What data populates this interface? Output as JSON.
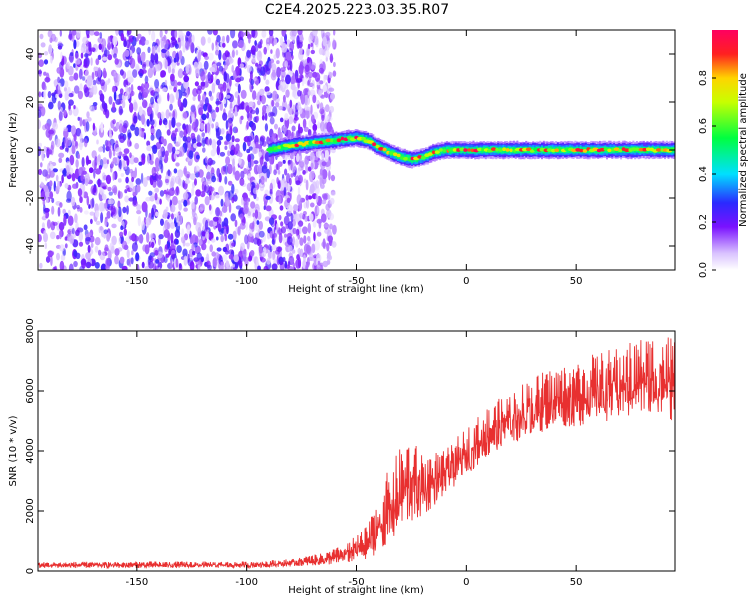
{
  "title": "C2E4.2025.223.03.35.R07",
  "chart_data": [
    {
      "type": "heatmap",
      "xlabel": "Height of straight line (km)",
      "ylabel": "Frequency (Hz)",
      "xlim": [
        -195,
        95
      ],
      "ylim": [
        -50,
        50
      ],
      "xticks": [
        "-150",
        "-100",
        "-50",
        "0",
        "50"
      ],
      "yticks": [
        "-40",
        "-20",
        "0",
        "20",
        "40"
      ],
      "colorbar": {
        "label": "Normalized spectral amplitude",
        "range": [
          0.0,
          1.0
        ],
        "ticks": [
          "0.0",
          "0.2",
          "0.4",
          "0.6",
          "0.8"
        ],
        "colormap": "white-purple-blue-cyan-green-yellow-red-magenta"
      },
      "ridge": {
        "x_start": -90,
        "x_end": 95,
        "frequency_profile": [
          {
            "x": -90,
            "y": 0
          },
          {
            "x": -80,
            "y": 2
          },
          {
            "x": -70,
            "y": 3
          },
          {
            "x": -60,
            "y": 4
          },
          {
            "x": -50,
            "y": 5
          },
          {
            "x": -45,
            "y": 4
          },
          {
            "x": -40,
            "y": 1
          },
          {
            "x": -35,
            "y": -1
          },
          {
            "x": -30,
            "y": -3
          },
          {
            "x": -25,
            "y": -4
          },
          {
            "x": -20,
            "y": -3
          },
          {
            "x": -15,
            "y": -1
          },
          {
            "x": -10,
            "y": 0
          },
          {
            "x": 0,
            "y": 0
          },
          {
            "x": 10,
            "y": 0
          },
          {
            "x": 20,
            "y": 0
          },
          {
            "x": 40,
            "y": 0
          },
          {
            "x": 60,
            "y": 0
          },
          {
            "x": 80,
            "y": 0
          },
          {
            "x": 95,
            "y": 0
          }
        ]
      }
    },
    {
      "type": "line",
      "xlabel": "Height of straight line (km)",
      "ylabel": "SNR (10 * v/v)",
      "xlim": [
        -195,
        95
      ],
      "ylim": [
        0,
        8000
      ],
      "xticks": [
        "-150",
        "-100",
        "-50",
        "0",
        "50"
      ],
      "yticks": [
        "0",
        "2000",
        "4000",
        "6000",
        "8000"
      ],
      "series": [
        {
          "color": "#e83030",
          "envelope": [
            {
              "x": -195,
              "low": 100,
              "high": 300
            },
            {
              "x": -150,
              "low": 100,
              "high": 320
            },
            {
              "x": -100,
              "low": 100,
              "high": 320
            },
            {
              "x": -80,
              "low": 150,
              "high": 400
            },
            {
              "x": -65,
              "low": 200,
              "high": 600
            },
            {
              "x": -55,
              "low": 250,
              "high": 900
            },
            {
              "x": -45,
              "low": 400,
              "high": 1500
            },
            {
              "x": -35,
              "low": 800,
              "high": 3500
            },
            {
              "x": -27,
              "low": 1500,
              "high": 4500
            },
            {
              "x": -20,
              "low": 1800,
              "high": 4000
            },
            {
              "x": -10,
              "low": 2500,
              "high": 4000
            },
            {
              "x": 0,
              "low": 3200,
              "high": 4800
            },
            {
              "x": 10,
              "low": 3800,
              "high": 5500
            },
            {
              "x": 20,
              "low": 4200,
              "high": 6000
            },
            {
              "x": 30,
              "low": 4500,
              "high": 6500
            },
            {
              "x": 40,
              "low": 4800,
              "high": 6800
            },
            {
              "x": 50,
              "low": 4800,
              "high": 7000
            },
            {
              "x": 60,
              "low": 5000,
              "high": 7300
            },
            {
              "x": 70,
              "low": 5000,
              "high": 7500
            },
            {
              "x": 80,
              "low": 5200,
              "high": 7800
            },
            {
              "x": 90,
              "low": 5000,
              "high": 8000
            },
            {
              "x": 95,
              "low": 5000,
              "high": 7800
            }
          ]
        }
      ]
    }
  ]
}
